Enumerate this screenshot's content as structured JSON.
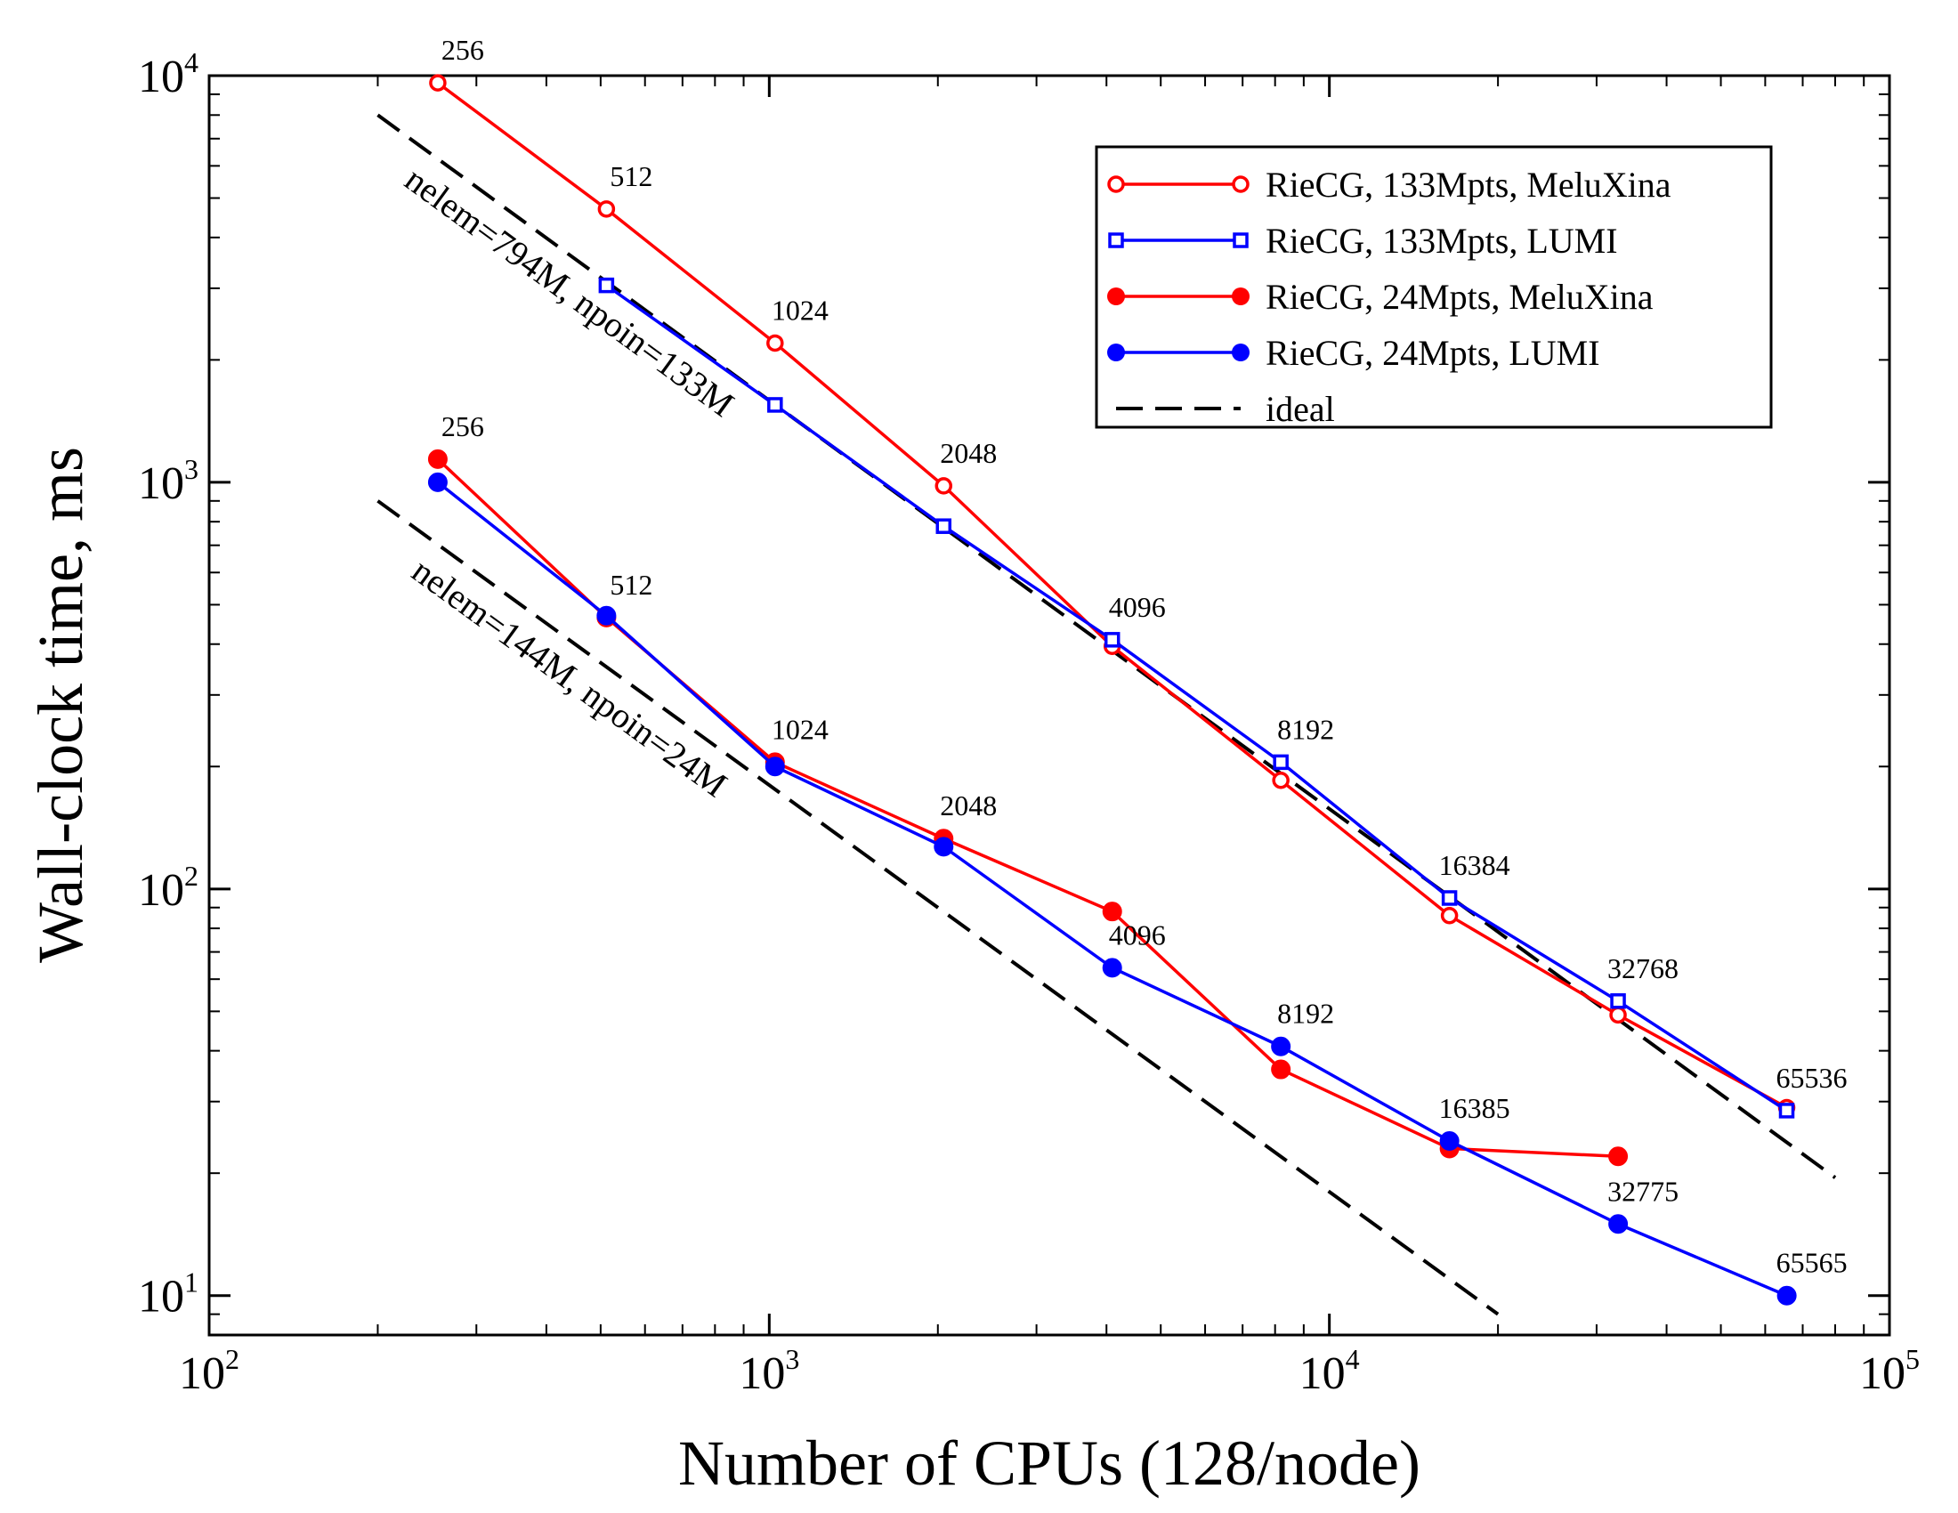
{
  "chart_data": {
    "type": "line",
    "xlabel": "Number of CPUs (128/node)",
    "ylabel": "Wall-clock time, ms",
    "x_scale": "log",
    "y_scale": "log",
    "xlim": [
      100,
      100000
    ],
    "ylim": [
      8,
      10000
    ],
    "x_ticks": [
      {
        "base": "10",
        "exp": "2",
        "value": 100
      },
      {
        "base": "10",
        "exp": "3",
        "value": 1000
      },
      {
        "base": "10",
        "exp": "4",
        "value": 10000
      },
      {
        "base": "10",
        "exp": "5",
        "value": 100000
      }
    ],
    "y_ticks": [
      {
        "base": "10",
        "exp": "1",
        "value": 10
      },
      {
        "base": "10",
        "exp": "2",
        "value": 100
      },
      {
        "base": "10",
        "exp": "3",
        "value": 1000
      },
      {
        "base": "10",
        "exp": "4",
        "value": 10000
      }
    ],
    "legend_position": "top-right",
    "series": [
      {
        "name": "RieCG, 133Mpts, MeluXina",
        "color": "#ff0000",
        "marker": "circle-open",
        "x": [
          256,
          512,
          1024,
          2048,
          4096,
          8192,
          16384,
          32768,
          65536
        ],
        "y": [
          9600,
          4700,
          2200,
          980,
          395,
          185,
          86,
          49,
          29
        ],
        "labels": [
          "256",
          "512",
          "1024",
          "2048",
          "",
          "",
          "",
          "",
          ""
        ]
      },
      {
        "name": "RieCG, 133Mpts, LUMI",
        "color": "#0000ff",
        "marker": "square-open",
        "x": [
          512,
          1024,
          2048,
          4096,
          8192,
          16384,
          32768,
          65536
        ],
        "y": [
          3050,
          1550,
          780,
          410,
          205,
          95,
          53,
          28.5
        ],
        "labels": [
          "",
          "",
          "",
          "4096",
          "8192",
          "16384",
          "32768",
          "65536"
        ]
      },
      {
        "name": "RieCG, 24Mpts, MeluXina",
        "color": "#ff0000",
        "marker": "circle-filled",
        "x": [
          256,
          512,
          1024,
          2048,
          4096,
          8192,
          16384,
          32768
        ],
        "y": [
          1140,
          465,
          205,
          133,
          88,
          36,
          23,
          22
        ],
        "labels": [
          "256",
          "512",
          "1024",
          "2048",
          "",
          "",
          "",
          ""
        ]
      },
      {
        "name": "RieCG, 24Mpts, LUMI",
        "color": "#0000ff",
        "marker": "circle-filled",
        "x": [
          256,
          512,
          1024,
          2048,
          4096,
          8192,
          16385,
          32775,
          65565
        ],
        "y": [
          1000,
          470,
          200,
          127,
          64,
          41,
          24,
          15,
          10
        ],
        "labels": [
          "",
          "",
          "",
          "",
          "4096",
          "8192",
          "16385",
          "32775",
          "65565"
        ]
      },
      {
        "name": "ideal",
        "color": "#000000",
        "marker": "none",
        "dashed": true
      }
    ],
    "ideal_lines": [
      {
        "x": [
          200,
          80000
        ],
        "y": [
          8000,
          19.5
        ],
        "annotation": "nelem=794M, npoin=133M"
      },
      {
        "x": [
          200,
          20000
        ],
        "y": [
          900,
          9
        ],
        "annotation": "nelem=144M, npoin=24M"
      }
    ]
  }
}
